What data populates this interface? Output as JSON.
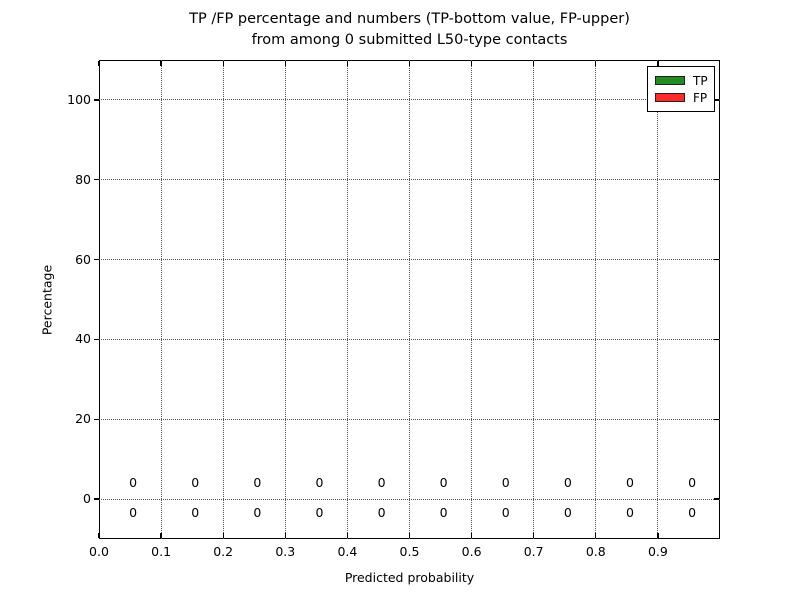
{
  "figure": {
    "title_line1": "TP /FP percentage and numbers (TP-bottom value, FP-upper)",
    "title_line2": "from among 0 submitted L50-type contacts"
  },
  "chart_data": {
    "type": "bar",
    "title": "TP /FP percentage and numbers (TP-bottom value, FP-upper) from among 0 submitted L50-type contacts",
    "xlabel": "Predicted probability",
    "ylabel": "Percentage",
    "xlim": [
      0.0,
      1.0
    ],
    "ylim": [
      -10,
      110
    ],
    "xticks": [
      0.0,
      0.1,
      0.2,
      0.3,
      0.4,
      0.5,
      0.6,
      0.7,
      0.8,
      0.9
    ],
    "xtick_labels": [
      "0.0",
      "0.1",
      "0.2",
      "0.3",
      "0.4",
      "0.5",
      "0.6",
      "0.7",
      "0.8",
      "0.9"
    ],
    "yticks": [
      0,
      20,
      40,
      60,
      80,
      100
    ],
    "ytick_labels": [
      "0",
      "20",
      "40",
      "60",
      "80",
      "100"
    ],
    "grid": true,
    "grid_style": "dotted",
    "bin_centers": [
      0.055,
      0.155,
      0.255,
      0.355,
      0.455,
      0.555,
      0.655,
      0.755,
      0.855,
      0.955
    ],
    "series": [
      {
        "name": "TP",
        "color": "#228b22",
        "values": [
          0,
          0,
          0,
          0,
          0,
          0,
          0,
          0,
          0,
          0
        ],
        "label_y": -3.5,
        "label_position": "below-zero-line"
      },
      {
        "name": "FP",
        "color": "#ff2a2a",
        "values": [
          0,
          0,
          0,
          0,
          0,
          0,
          0,
          0,
          0,
          0
        ],
        "label_y": 4,
        "label_position": "above-zero-line"
      }
    ],
    "legend": {
      "position": "upper right",
      "entries": [
        "TP",
        "FP"
      ]
    }
  }
}
